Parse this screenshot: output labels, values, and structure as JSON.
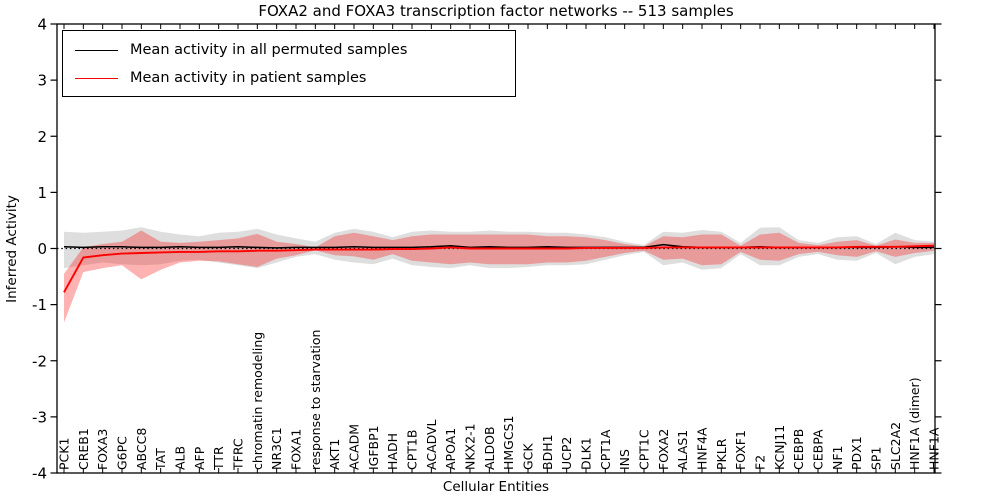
{
  "figure": {
    "title": "FOXA2 and FOXA3 transcription factor networks -- 513 samples",
    "background_color": "#ffffff",
    "frame_color": "#000000"
  },
  "legend": {
    "position": "upper left",
    "items": [
      {
        "label": "Mean activity in all permuted samples",
        "color": "#000000"
      },
      {
        "label": "Mean activity in patient samples",
        "color": "#ff0000"
      }
    ]
  },
  "chart_data": {
    "type": "line",
    "title": "FOXA2 and FOXA3 transcription factor networks -- 513 samples",
    "xlabel": "Cellular Entities",
    "ylabel": "Inferred Activity",
    "ylim": [
      -4,
      4
    ],
    "yticks": [
      -4,
      -3,
      -2,
      -1,
      0,
      1,
      2,
      3,
      4
    ],
    "grid": false,
    "zero_line": {
      "show": true,
      "style": "dotted",
      "color": "#000000"
    },
    "legend_position": "upper left",
    "x_tick_label_rotation": 90,
    "categories": [
      "PCK1",
      "CREB1",
      "FOXA3",
      "G6PC",
      "ABCC8",
      "TAT",
      "ALB",
      "AFP",
      "TTR",
      "TFRC",
      "chromatin remodeling",
      "NR3C1",
      "FOXA1",
      "response to starvation",
      "AKT1",
      "ACADM",
      "IGFBP1",
      "HADH",
      "CPT1B",
      "ACADVL",
      "APOA1",
      "NKX2-1",
      "ALDOB",
      "HMGCS1",
      "GCK",
      "BDH1",
      "UCP2",
      "DLK1",
      "CPT1A",
      "INS",
      "CPT1C",
      "FOXA2",
      "ALAS1",
      "HNF4A",
      "PKLR",
      "FOXF1",
      "F2",
      "KCNJ11",
      "CEBPB",
      "CEBPA",
      "NF1",
      "PDX1",
      "SP1",
      "SLC2A2",
      "HNF1A (dimer)",
      "HNF1A"
    ],
    "series": [
      {
        "name": "Mean activity in all permuted samples",
        "color": "#000000",
        "line_width": 1.5,
        "band_color": "#000000",
        "band_opacity": 0.13,
        "values": [
          0.03,
          0.02,
          0.03,
          0.03,
          0.02,
          0.02,
          0.03,
          0.02,
          0.02,
          0.03,
          0.02,
          0.01,
          0.02,
          0.02,
          0.02,
          0.03,
          0.02,
          0.02,
          0.02,
          0.03,
          0.05,
          0.02,
          0.03,
          0.02,
          0.02,
          0.03,
          0.02,
          0.02,
          0.02,
          0.02,
          0.02,
          0.07,
          0.03,
          0.02,
          0.02,
          0.02,
          0.03,
          0.02,
          0.02,
          0.02,
          0.02,
          0.02,
          0.02,
          0.03,
          0.02,
          0.02
        ],
        "band_upper": [
          0.3,
          0.28,
          0.3,
          0.32,
          0.38,
          0.3,
          0.25,
          0.22,
          0.28,
          0.3,
          0.35,
          0.25,
          0.18,
          0.12,
          0.28,
          0.35,
          0.3,
          0.2,
          0.3,
          0.32,
          0.3,
          0.3,
          0.32,
          0.3,
          0.3,
          0.28,
          0.28,
          0.25,
          0.2,
          0.12,
          0.06,
          0.3,
          0.28,
          0.33,
          0.3,
          0.1,
          0.37,
          0.38,
          0.15,
          0.1,
          0.2,
          0.22,
          0.08,
          0.28,
          0.15,
          0.12
        ],
        "band_lower": [
          -0.35,
          -0.3,
          -0.25,
          -0.28,
          -0.3,
          -0.28,
          -0.22,
          -0.2,
          -0.25,
          -0.3,
          -0.35,
          -0.25,
          -0.15,
          -0.1,
          -0.2,
          -0.25,
          -0.28,
          -0.18,
          -0.3,
          -0.33,
          -0.35,
          -0.3,
          -0.35,
          -0.35,
          -0.33,
          -0.3,
          -0.3,
          -0.28,
          -0.2,
          -0.12,
          -0.06,
          -0.3,
          -0.25,
          -0.38,
          -0.35,
          -0.1,
          -0.3,
          -0.3,
          -0.15,
          -0.1,
          -0.2,
          -0.22,
          -0.08,
          -0.28,
          -0.15,
          -0.1
        ]
      },
      {
        "name": "Mean activity in patient samples",
        "color": "#ff0000",
        "line_width": 1.9,
        "band_color": "#ff0000",
        "band_opacity": 0.3,
        "values": [
          -0.78,
          -0.16,
          -0.12,
          -0.09,
          -0.08,
          -0.07,
          -0.06,
          -0.06,
          -0.05,
          -0.05,
          -0.04,
          -0.04,
          -0.03,
          -0.02,
          -0.02,
          -0.02,
          -0.02,
          -0.01,
          -0.01,
          0.0,
          0.02,
          0.0,
          0.0,
          0.0,
          0.0,
          0.0,
          0.0,
          0.01,
          0.01,
          0.01,
          0.01,
          0.02,
          0.02,
          0.02,
          0.02,
          0.02,
          0.02,
          0.02,
          0.02,
          0.02,
          0.02,
          0.03,
          0.03,
          0.03,
          0.04,
          0.05
        ],
        "band_upper": [
          -0.45,
          0.02,
          0.08,
          0.12,
          0.32,
          0.12,
          0.1,
          0.12,
          0.15,
          0.18,
          0.26,
          0.12,
          0.08,
          0.02,
          0.22,
          0.28,
          0.22,
          0.15,
          0.22,
          0.25,
          0.25,
          0.25,
          0.25,
          0.25,
          0.25,
          0.22,
          0.22,
          0.2,
          0.15,
          0.08,
          0.04,
          0.22,
          0.2,
          0.25,
          0.25,
          0.05,
          0.25,
          0.28,
          0.1,
          0.06,
          0.12,
          0.15,
          0.05,
          0.16,
          0.1,
          0.1
        ],
        "band_lower": [
          -1.32,
          -0.42,
          -0.35,
          -0.3,
          -0.55,
          -0.38,
          -0.25,
          -0.22,
          -0.23,
          -0.28,
          -0.33,
          -0.18,
          -0.12,
          -0.03,
          -0.12,
          -0.14,
          -0.2,
          -0.1,
          -0.22,
          -0.25,
          -0.28,
          -0.25,
          -0.28,
          -0.28,
          -0.28,
          -0.25,
          -0.25,
          -0.22,
          -0.15,
          -0.08,
          -0.04,
          -0.2,
          -0.18,
          -0.3,
          -0.28,
          -0.06,
          -0.2,
          -0.22,
          -0.1,
          -0.06,
          -0.12,
          -0.15,
          -0.05,
          -0.15,
          -0.08,
          -0.04
        ]
      }
    ]
  }
}
